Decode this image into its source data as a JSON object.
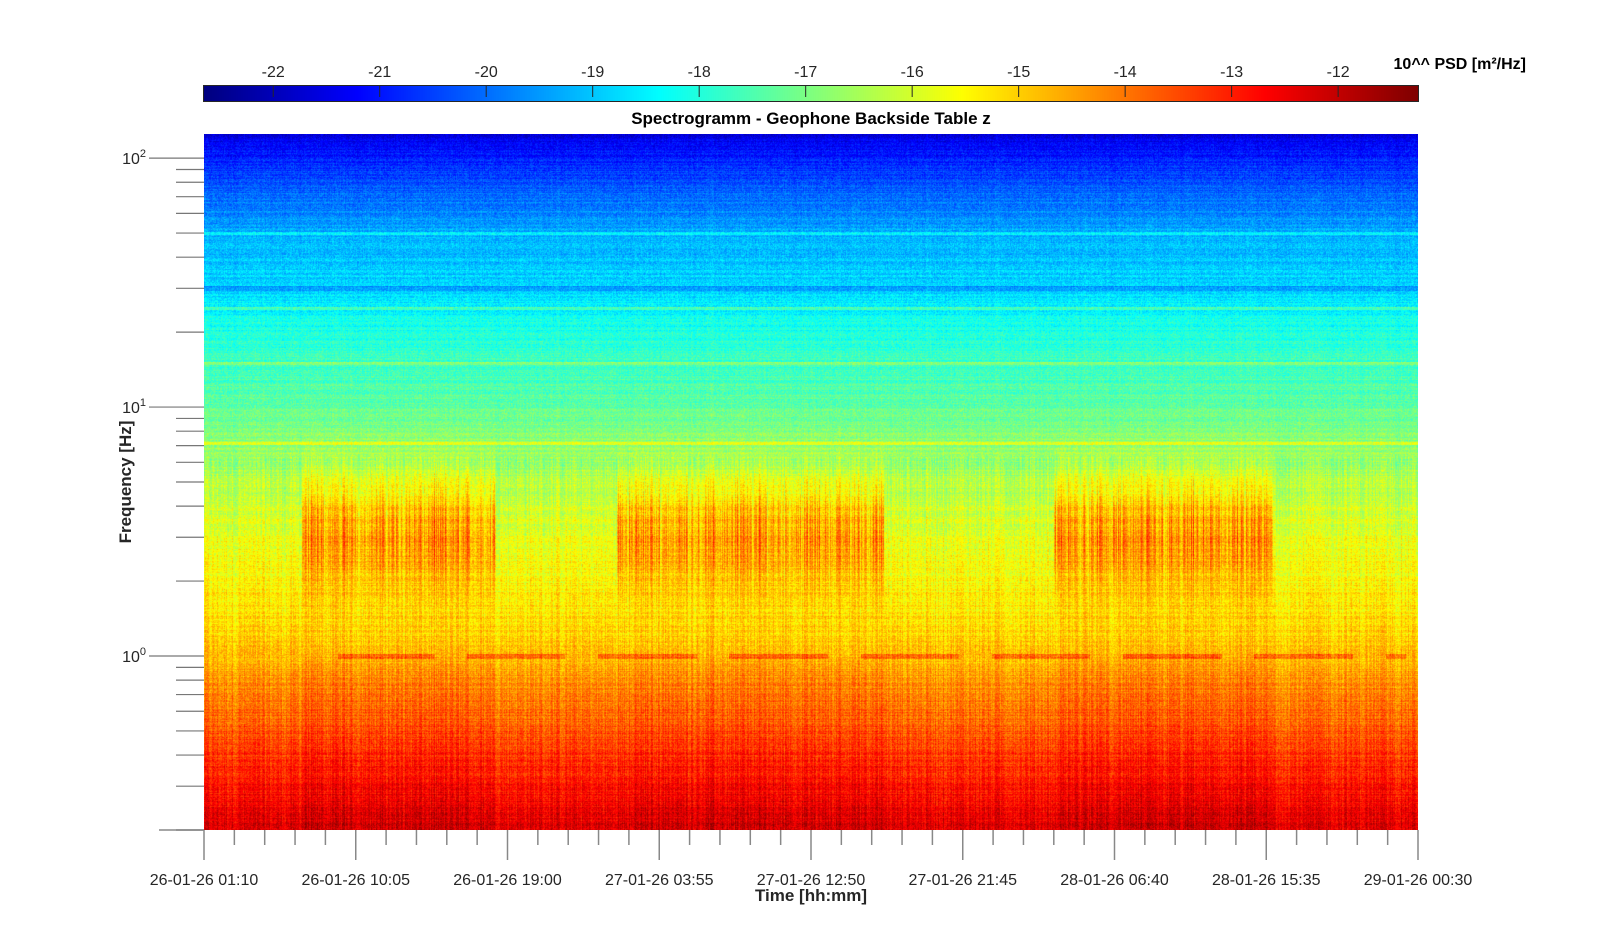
{
  "chart_data": {
    "type": "heatmap",
    "title": "Spectrogramm - Geophone Backside Table z",
    "xlabel": "Time [hh:mm]",
    "ylabel": "Frequency [Hz]",
    "x_tick_labels": [
      "26-01-26 01:10",
      "26-01-26 10:05",
      "26-01-26 19:00",
      "27-01-26 03:55",
      "27-01-26 12:50",
      "27-01-26 21:45",
      "28-01-26 06:40",
      "28-01-26 15:35",
      "29-01-26 00:30"
    ],
    "x_range": [
      "26-01-26 01:10",
      "29-01-26 00:30"
    ],
    "y_scale": "log",
    "ylim": [
      0.2,
      125
    ],
    "y_ticks": [
      {
        "value": 1,
        "base": "10",
        "exp": "0"
      },
      {
        "value": 10,
        "base": "10",
        "exp": "1"
      },
      {
        "value": 100,
        "base": "10",
        "exp": "2"
      }
    ],
    "colormap": "jet",
    "colorbar": {
      "label": "10^^ PSD [m²/Hz]",
      "placement": "top",
      "clim": [
        -22.65,
        -11.25
      ],
      "ticks": [
        "-22",
        "-21",
        "-20",
        "-19",
        "-18",
        "-17",
        "-16",
        "-15",
        "-14",
        "-13",
        "-12"
      ]
    },
    "features": {
      "low_freq_level_below_0.5Hz": -12.5,
      "level_at_1Hz": -14.8,
      "level_at_10Hz": -17.3,
      "level_at_100Hz": -20.8,
      "daytime_activity_peak_band_Hz": [
        2,
        5
      ],
      "daytime_activity_peak_level": -13.8
    }
  }
}
